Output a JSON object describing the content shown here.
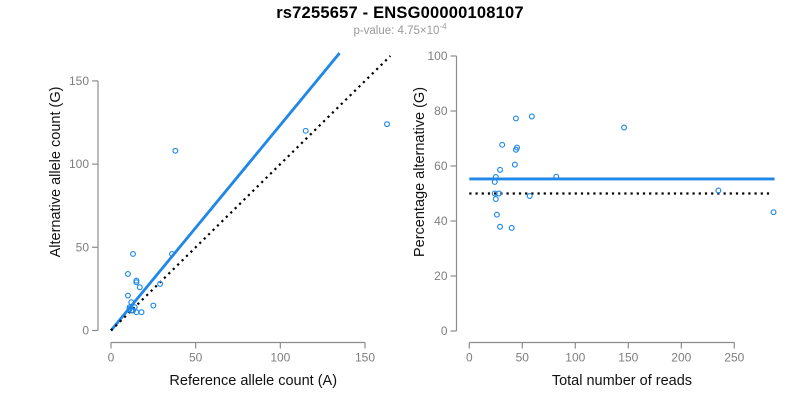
{
  "header": {
    "title": "rs7255657 - ENSG00000108107",
    "subtitle_prefix": "p-value: 4.75×10",
    "subtitle_exponent": "-4"
  },
  "colors": {
    "point_blue": "#1E87E8",
    "fit_blue": "#1E87E8",
    "reference_black": "#000000",
    "axis_gray": "#8C8C8C",
    "tick_label_gray": "#7E7E7E",
    "axis_title_black": "#111111",
    "subtitle_gray": "#9A9A9A",
    "background": "#FFFFFF"
  },
  "chart_data": [
    {
      "type": "scatter",
      "panel": "left",
      "xlabel": "Reference allele count (A)",
      "ylabel": "Alternative allele count (G)",
      "xlim": [
        0,
        168
      ],
      "ylim": [
        0,
        168
      ],
      "xticks": [
        0,
        50,
        100,
        150
      ],
      "yticks": [
        0,
        50,
        100,
        150
      ],
      "grid": false,
      "marker": "open-circle",
      "points": [
        [
          10,
          34
        ],
        [
          13,
          46
        ],
        [
          38,
          108
        ],
        [
          10,
          21
        ],
        [
          15,
          29
        ],
        [
          15,
          30
        ],
        [
          17,
          26
        ],
        [
          12,
          17
        ],
        [
          11,
          14
        ],
        [
          11,
          13
        ],
        [
          36,
          46
        ],
        [
          12,
          12
        ],
        [
          14,
          14
        ],
        [
          29,
          28
        ],
        [
          115,
          120
        ],
        [
          13,
          12
        ],
        [
          15,
          11
        ],
        [
          163,
          124
        ],
        [
          18,
          11
        ],
        [
          25,
          15
        ]
      ],
      "lines": [
        {
          "name": "fit-line",
          "style": "solid",
          "color_key": "fit_blue",
          "slope": 1.235,
          "intercept": 0,
          "x_range": [
            0,
            135
          ]
        },
        {
          "name": "identity-line",
          "style": "dotted",
          "color_key": "reference_black",
          "slope": 1,
          "intercept": 0,
          "x_range": [
            0,
            165
          ]
        }
      ]
    },
    {
      "type": "scatter",
      "panel": "right",
      "xlabel": "Total number of reads",
      "ylabel": "Percentage alternative (G)",
      "xlim": [
        0,
        288
      ],
      "ylim": [
        0,
        100
      ],
      "xticks": [
        0,
        50,
        100,
        150,
        200,
        250
      ],
      "yticks": [
        0,
        20,
        40,
        60,
        80,
        100
      ],
      "grid": false,
      "marker": "open-circle",
      "points": [
        [
          44,
          77.3
        ],
        [
          59,
          78.0
        ],
        [
          146,
          74.0
        ],
        [
          31,
          67.7
        ],
        [
          44,
          65.9
        ],
        [
          45,
          66.7
        ],
        [
          43,
          60.5
        ],
        [
          29,
          58.6
        ],
        [
          25,
          56.0
        ],
        [
          24,
          54.2
        ],
        [
          82,
          56.1
        ],
        [
          24,
          50.0
        ],
        [
          28,
          50.0
        ],
        [
          57,
          49.1
        ],
        [
          235,
          51.1
        ],
        [
          25,
          48.0
        ],
        [
          26,
          42.3
        ],
        [
          287,
          43.2
        ],
        [
          29,
          37.9
        ],
        [
          40,
          37.5
        ]
      ],
      "lines": [
        {
          "name": "fit-line",
          "style": "solid",
          "color_key": "fit_blue",
          "value": 55.3,
          "x_range": [
            0,
            288
          ]
        },
        {
          "name": "null-line",
          "style": "dotted",
          "color_key": "reference_black",
          "value": 50,
          "x_range": [
            0,
            284
          ]
        }
      ]
    }
  ]
}
